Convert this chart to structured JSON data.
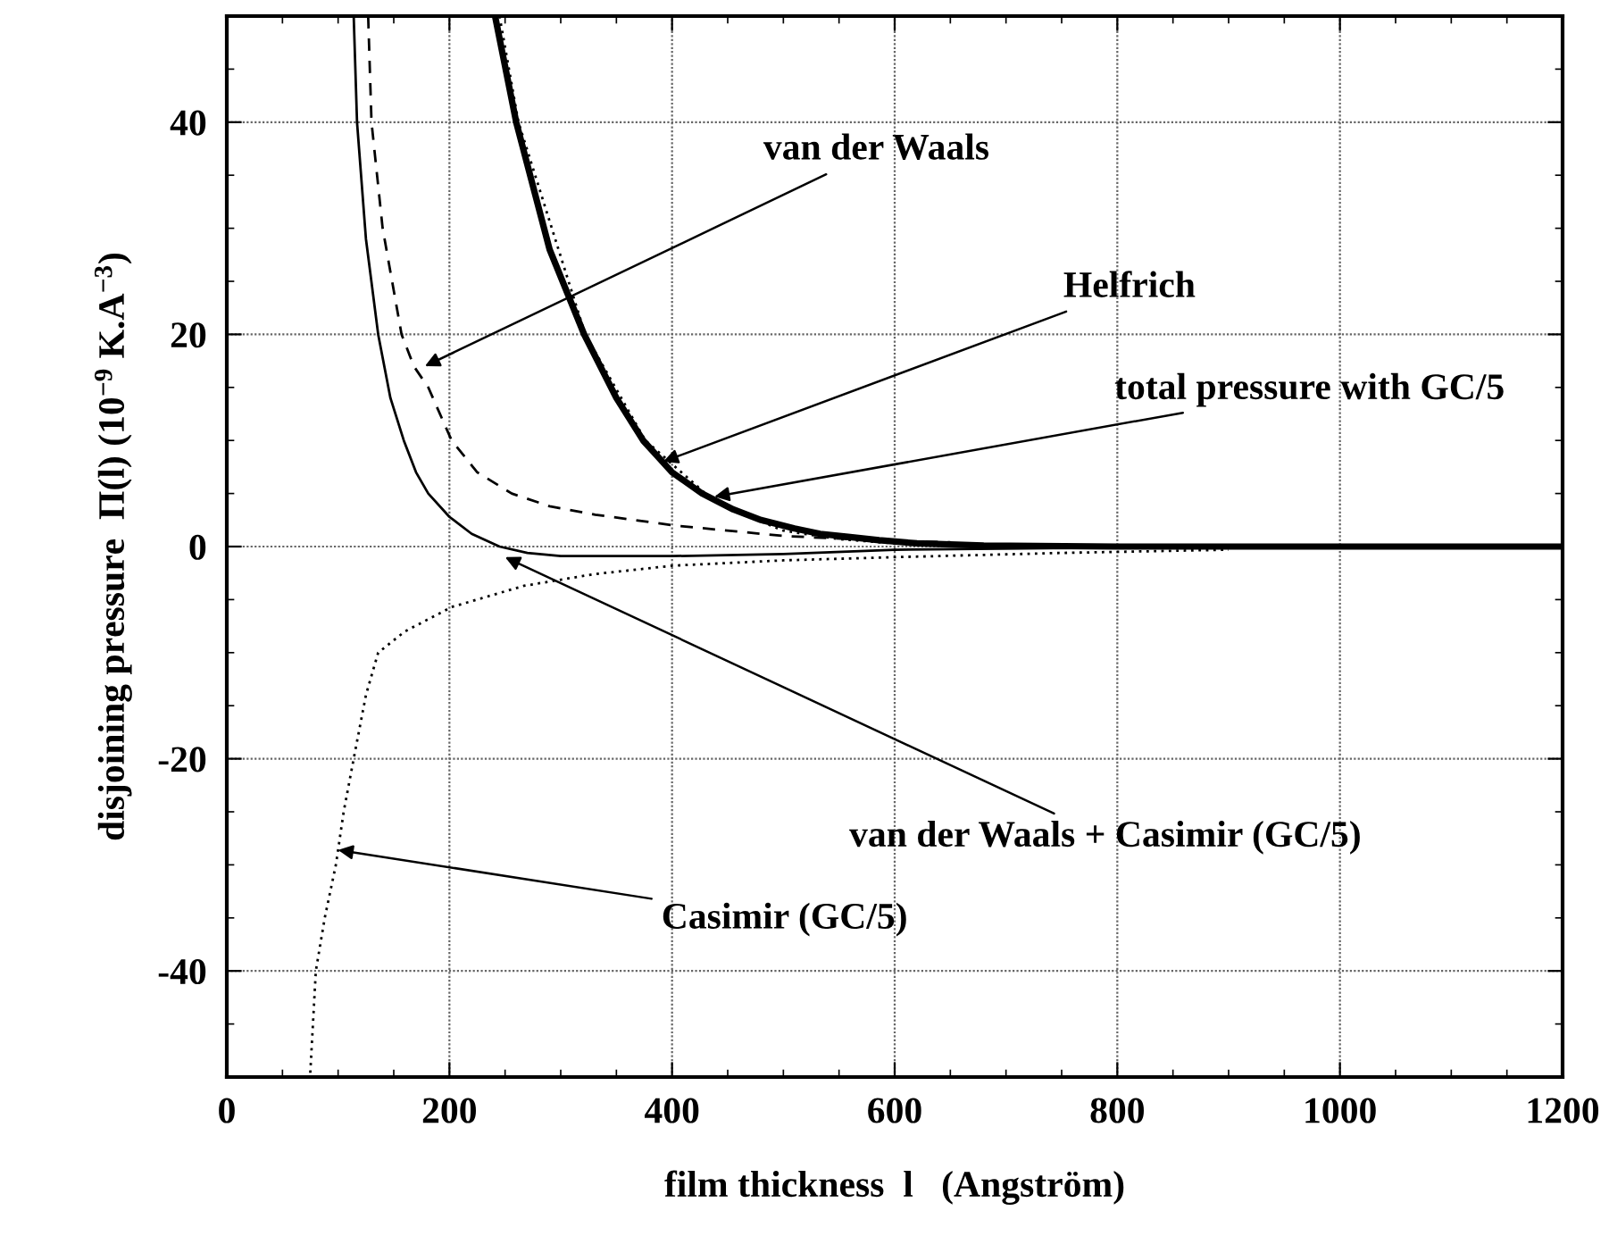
{
  "chart_data": {
    "type": "line",
    "xlabel": "film thickness  l   (Angström)",
    "ylabel": "disjoining pressure  Π(l) (10$^{−9}$ K.A$^{−3}$)",
    "xlim": [
      0,
      1200
    ],
    "ylim": [
      -50,
      50
    ],
    "xticks": [
      0,
      200,
      400,
      600,
      800,
      1000,
      1200
    ],
    "yticks": [
      -40,
      -20,
      0,
      20,
      40
    ],
    "grid": true,
    "marker": "none",
    "series": [
      {
        "color": "#000000",
        "line_style": "solid",
        "x": [
          241,
          260,
          290,
          321,
          350,
          374,
          400,
          427,
          455,
          480,
          510,
          533,
          560,
          586,
          620,
          680,
          800,
          1000,
          1200
        ],
        "values": [
          50,
          40,
          28,
          20,
          14,
          10,
          7,
          5,
          3.5,
          2.5,
          1.7,
          1.2,
          0.9,
          0.6,
          0.3,
          0.1,
          0,
          0,
          0
        ]
      },
      {
        "color": "#000000",
        "line_style": "dotted",
        "x": [
          245,
          262,
          322,
          376,
          430,
          465,
          500,
          550,
          600,
          700,
          887
        ],
        "values": [
          50,
          40,
          20,
          10,
          5,
          3,
          1.5,
          0.7,
          0.3,
          0,
          0
        ]
      },
      {
        "color": "#000000",
        "line_style": "solid",
        "x": [
          114,
          117,
          125,
          136,
          147,
          159,
          170,
          181,
          200,
          220,
          245,
          270,
          300,
          400,
          500,
          600,
          800
        ],
        "values": [
          50,
          40,
          29,
          20,
          14,
          10,
          7,
          5,
          2.8,
          1.2,
          0,
          -0.6,
          -0.9,
          -0.9,
          -0.7,
          -0.3,
          -0.1
        ]
      },
      {
        "color": "#000000",
        "line_style": "dashed",
        "x": [
          127,
          130,
          140,
          157,
          168,
          181,
          202,
          225,
          256,
          290,
          331,
          401,
          500,
          600,
          650
        ],
        "values": [
          50,
          40,
          30,
          20,
          17,
          15,
          10,
          7,
          5,
          3.8,
          3,
          2,
          1,
          0.5,
          0.4
        ]
      },
      {
        "color": "#000000",
        "line_style": "dotted",
        "x": [
          75,
          80,
          88,
          98,
          105,
          114,
          125,
          136,
          160,
          202,
          267,
          330,
          401,
          500,
          600,
          750,
          900
        ],
        "values": [
          -49.6,
          -40,
          -35,
          -30,
          -25,
          -20,
          -14,
          -10,
          -8,
          -5.7,
          -3.7,
          -2.6,
          -1.8,
          -1.3,
          -1,
          -0.6,
          -0.3
        ]
      }
    ],
    "annotations": [
      {
        "text": "van der Waals",
        "x": 178,
        "y": 17
      },
      {
        "text": "Helfrich",
        "x": 392,
        "y": 8
      },
      {
        "text": "total pressure with GC/5",
        "x": 438,
        "y": 4.7
      },
      {
        "text": "van der Waals + Casimir (GC/5)",
        "x": 250,
        "y": -1
      },
      {
        "text": "Casimir (GC/5)",
        "x": 100,
        "y": -28.6
      }
    ]
  }
}
